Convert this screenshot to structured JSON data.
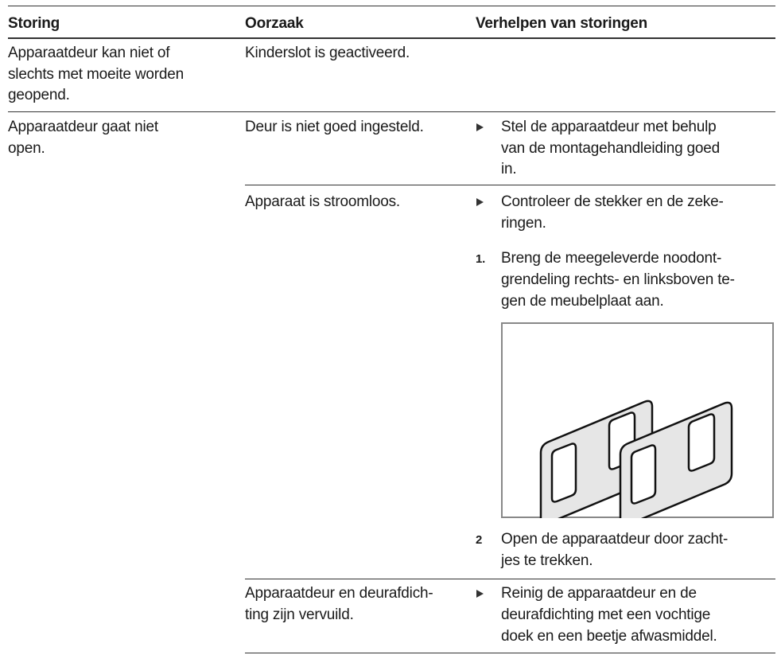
{
  "header": {
    "columns": [
      "Storing",
      "Oorzaak",
      "Verhelpen van storingen"
    ]
  },
  "rows": [
    {
      "fault": [
        "Apparaatdeur kan niet of",
        "slechts met moeite worden",
        "geopend."
      ],
      "cause": [
        "Kinderslot is geactiveerd."
      ]
    },
    {
      "fault": [
        "Apparaatdeur gaat niet",
        "open."
      ],
      "cause": [
        "Deur is niet goed ingesteld."
      ],
      "remedy": [
        "Stel de apparaatdeur met behulp",
        "van de montagehandleiding goed",
        "in."
      ]
    },
    {
      "cause": [
        "Apparaat is stroomloos."
      ],
      "remedy": [
        "Controleer de stekker en de zeke-",
        "ringen."
      ],
      "steps": [
        {
          "number": "1.",
          "lines": [
            "Breng de meegeleverde noodont-",
            "grendeling rechts- en linksboven te-",
            "gen de meubelplaat aan."
          ]
        },
        {
          "number": "2",
          "lines": [
            "Open de apparaatdeur door zacht-",
            "jes te trekken."
          ]
        }
      ]
    },
    {
      "cause": [
        "Apparaatdeur en deurafdich-",
        "ting zijn vervuild."
      ],
      "remedy": [
        "Reinig de apparaatdeur en de",
        "deurafdichting met een vochtige",
        "doek en een beetje afwasmiddel."
      ]
    }
  ]
}
